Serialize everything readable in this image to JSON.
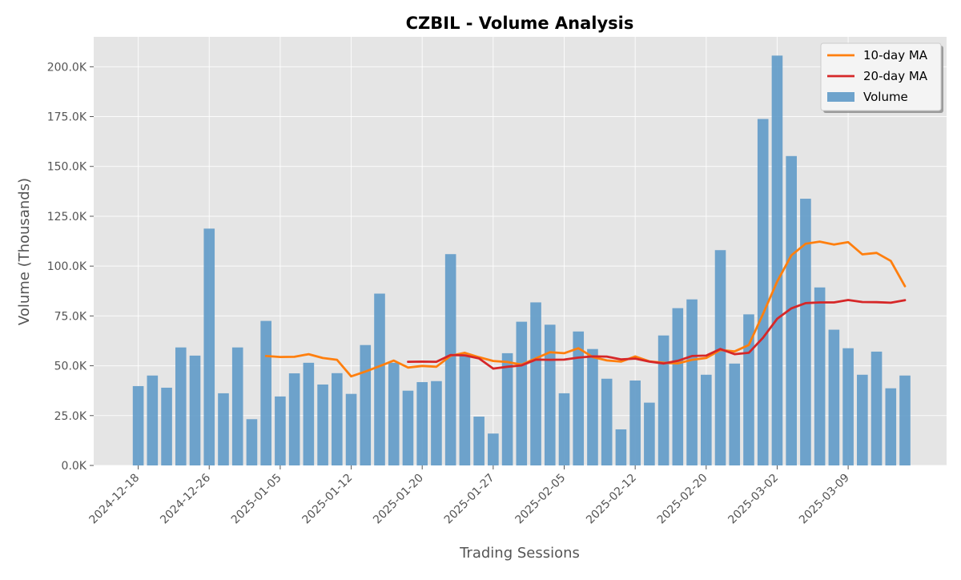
{
  "chart_data": {
    "type": "bar",
    "title": "CZBIL - Volume Analysis",
    "xlabel": "Trading Sessions",
    "ylabel": "Volume (Thousands)",
    "ylim": [
      0,
      215
    ],
    "yticks": [
      0,
      25,
      50,
      75,
      100,
      125,
      150,
      175,
      200
    ],
    "ytick_labels": [
      "0.0K",
      "25.0K",
      "50.0K",
      "75.0K",
      "100.0K",
      "125.0K",
      "150.0K",
      "175.0K",
      "200.0K"
    ],
    "xtick_indices": [
      0,
      5,
      10,
      15,
      20,
      25,
      30,
      35,
      40,
      45,
      50
    ],
    "xtick_labels": [
      "2024-12-18",
      "2024-12-26",
      "2025-01-05",
      "2025-01-12",
      "2025-01-20",
      "2025-01-27",
      "2025-02-05",
      "2025-02-12",
      "2025-02-20",
      "2025-03-02",
      "2025-03-09"
    ],
    "grid": true,
    "legend_position": "top-right",
    "colors": {
      "volume": "#5f9ac8",
      "ma10": "#ff7f0e",
      "ma20": "#d62728",
      "plot_bg": "#e5e5e5",
      "grid": "#ffffff"
    },
    "legend": [
      {
        "key": "ma10",
        "label": "10-day MA"
      },
      {
        "key": "ma20",
        "label": "20-day MA"
      },
      {
        "key": "volume",
        "label": "Volume"
      }
    ],
    "series": [
      {
        "name": "Volume",
        "key": "volume",
        "values": [
          39.8,
          45.1,
          39.0,
          59.2,
          55.1,
          118.8,
          36.2,
          59.2,
          23.2,
          72.5,
          34.6,
          46.2,
          51.5,
          40.6,
          46.3,
          35.9,
          60.4,
          86.2,
          51.5,
          37.5,
          41.8,
          42.3,
          106.0,
          55.8,
          24.5,
          16.0,
          56.3,
          72.1,
          81.8,
          70.6,
          36.2,
          67.2,
          58.4,
          43.5,
          18.1,
          42.6,
          31.5,
          65.2,
          78.9,
          83.3,
          45.5,
          108.0,
          51.1,
          75.8,
          173.8,
          205.6,
          155.2,
          133.8,
          89.3,
          68.1,
          58.8,
          45.5,
          57.1,
          38.7,
          45.1
        ]
      },
      {
        "name": "10-day MA",
        "key": "ma10",
        "values": [
          null,
          null,
          null,
          null,
          null,
          null,
          null,
          null,
          null,
          54.9,
          54.4,
          54.5,
          55.8,
          53.9,
          53.0,
          44.7,
          47.1,
          49.8,
          52.6,
          49.1,
          49.9,
          49.5,
          55.0,
          56.5,
          54.3,
          52.4,
          51.9,
          50.6,
          53.7,
          56.8,
          56.3,
          58.8,
          54.4,
          52.7,
          52.1,
          54.7,
          52.2,
          51.5,
          51.2,
          53.0,
          53.9,
          57.9,
          57.2,
          60.4,
          75.9,
          92.3,
          105.4,
          111.2,
          112.3,
          110.8,
          112.0,
          105.9,
          106.6,
          102.6,
          89.9
        ]
      },
      {
        "name": "20-day MA",
        "key": "ma20",
        "values": [
          null,
          null,
          null,
          null,
          null,
          null,
          null,
          null,
          null,
          null,
          null,
          null,
          null,
          null,
          null,
          null,
          null,
          null,
          null,
          52.0,
          52.1,
          52.0,
          55.4,
          55.2,
          53.7,
          48.6,
          49.5,
          50.2,
          53.1,
          53.0,
          53.1,
          54.1,
          54.7,
          54.6,
          53.2,
          53.6,
          52.1,
          51.1,
          52.5,
          54.9,
          55.1,
          58.4,
          55.8,
          56.5,
          64.0,
          73.6,
          78.8,
          81.4,
          81.8,
          81.8,
          83.0,
          82.0,
          81.9,
          81.6,
          82.9
        ]
      }
    ]
  }
}
